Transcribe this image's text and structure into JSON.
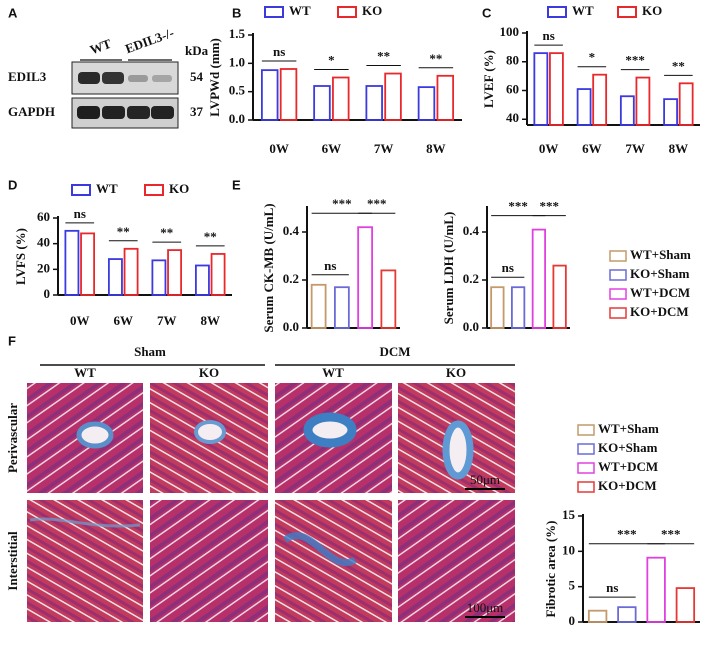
{
  "panel_labels": [
    "A",
    "B",
    "C",
    "D",
    "E",
    "F"
  ],
  "blot": {
    "lanes": [
      "WT",
      "EDIL3-/-"
    ],
    "unit": "kDa",
    "rows": [
      {
        "label": "EDIL3",
        "size": 54
      },
      {
        "label": "GAPDH",
        "size": 37
      }
    ]
  },
  "chart_data": [
    {
      "type": "grouped-bar",
      "ylabel": "LVPWd (mm)",
      "categories": [
        "0W",
        "6W",
        "7W",
        "8W"
      ],
      "series": [
        {
          "name": "WT",
          "color": "#3a3adf",
          "values": [
            0.88,
            0.6,
            0.6,
            0.58
          ]
        },
        {
          "name": "KO",
          "color": "#e8282b",
          "values": [
            0.9,
            0.75,
            0.82,
            0.78
          ]
        }
      ],
      "ylim": [
        0,
        1.5
      ],
      "yticks": [
        {
          "value": 0,
          "label": "0.0"
        },
        {
          "value": 0.5,
          "label": "0.5"
        },
        {
          "value": 1,
          "label": "1.0"
        },
        {
          "value": 1.5,
          "label": "1.5"
        }
      ],
      "significance": [
        "ns",
        "*",
        "**",
        "**"
      ]
    },
    {
      "type": "grouped-bar",
      "ylabel": "LVEF (%)",
      "categories": [
        "0W",
        "6W",
        "7W",
        "8W"
      ],
      "series": [
        {
          "name": "WT",
          "color": "#3a3adf",
          "values": [
            86,
            61,
            56,
            54
          ]
        },
        {
          "name": "KO",
          "color": "#e8282b",
          "values": [
            86,
            71,
            69,
            65
          ]
        }
      ],
      "ylim": [
        36,
        100
      ],
      "yticks": [
        40,
        60,
        80,
        100
      ],
      "significance": [
        "ns",
        "*",
        "***",
        "**"
      ]
    },
    {
      "type": "grouped-bar",
      "ylabel": "LVFS (%)",
      "categories": [
        "0W",
        "6W",
        "7W",
        "8W"
      ],
      "series": [
        {
          "name": "WT",
          "color": "#3a3adf",
          "values": [
            50,
            28,
            27,
            23
          ]
        },
        {
          "name": "KO",
          "color": "#e8282b",
          "values": [
            48,
            36,
            35,
            32
          ]
        }
      ],
      "ylim": [
        0,
        60
      ],
      "yticks": [
        0,
        20,
        40,
        60
      ],
      "significance": [
        "ns",
        "**",
        "**",
        "**"
      ]
    },
    {
      "type": "bar",
      "ylabel": "Serum CK-MB (U/mL)",
      "categories": [
        null,
        null,
        null,
        null
      ],
      "values": [
        0.18,
        0.17,
        0.42,
        0.24
      ],
      "colors": [
        "#c49a6c",
        "#6b6bd8",
        "#e040e0",
        "#e53935"
      ],
      "ylim": [
        0,
        0.5
      ],
      "yticks": [
        {
          "value": 0,
          "label": "0.0"
        },
        {
          "value": 0.2,
          "label": "0.2"
        },
        {
          "value": 0.4,
          "label": "0.4"
        }
      ],
      "significance": [
        "ns",
        "***",
        "***"
      ]
    },
    {
      "type": "bar",
      "ylabel": "Serum LDH (U/mL)",
      "categories": [
        null,
        null,
        null,
        null
      ],
      "values": [
        0.17,
        0.17,
        0.41,
        0.26
      ],
      "colors": [
        "#c49a6c",
        "#6b6bd8",
        "#e040e0",
        "#e53935"
      ],
      "ylim": [
        0,
        0.5
      ],
      "yticks": [
        {
          "value": 0,
          "label": "0.0"
        },
        {
          "value": 0.2,
          "label": "0.2"
        },
        {
          "value": 0.4,
          "label": "0.4"
        }
      ],
      "significance": [
        "ns",
        "***",
        "***"
      ]
    },
    {
      "type": "bar",
      "ylabel": "Fibrotic area (%)",
      "categories": [
        null,
        null,
        null,
        null
      ],
      "values": [
        1.6,
        2.1,
        9.1,
        4.8
      ],
      "colors": [
        "#c49a6c",
        "#6b6bd8",
        "#e040e0",
        "#e53935"
      ],
      "ylim": [
        0,
        15
      ],
      "yticks": [
        0,
        5,
        10,
        15
      ],
      "significance": [
        "ns",
        "***",
        "***"
      ]
    }
  ],
  "legends": [
    {
      "items": [
        {
          "name": "WT+Sham",
          "color": "#c49a6c"
        },
        {
          "name": "KO+Sham",
          "color": "#6b6bd8"
        },
        {
          "name": "WT+DCM",
          "color": "#e040e0"
        },
        {
          "name": "KO+DCM",
          "color": "#e53935"
        }
      ]
    },
    {
      "items": [
        {
          "name": "WT+Sham",
          "color": "#c49a6c"
        },
        {
          "name": "KO+Sham",
          "color": "#6b6bd8"
        },
        {
          "name": "WT+DCM",
          "color": "#e040e0"
        },
        {
          "name": "KO+DCM",
          "color": "#e53935"
        }
      ]
    }
  ],
  "histology": {
    "groups": [
      "Sham",
      "DCM"
    ],
    "columns": [
      "WT",
      "KO",
      "WT",
      "KO"
    ],
    "rows": [
      "Perivascular",
      "Interstitial"
    ],
    "scale_bars": [
      "50μm",
      "100μm"
    ]
  }
}
